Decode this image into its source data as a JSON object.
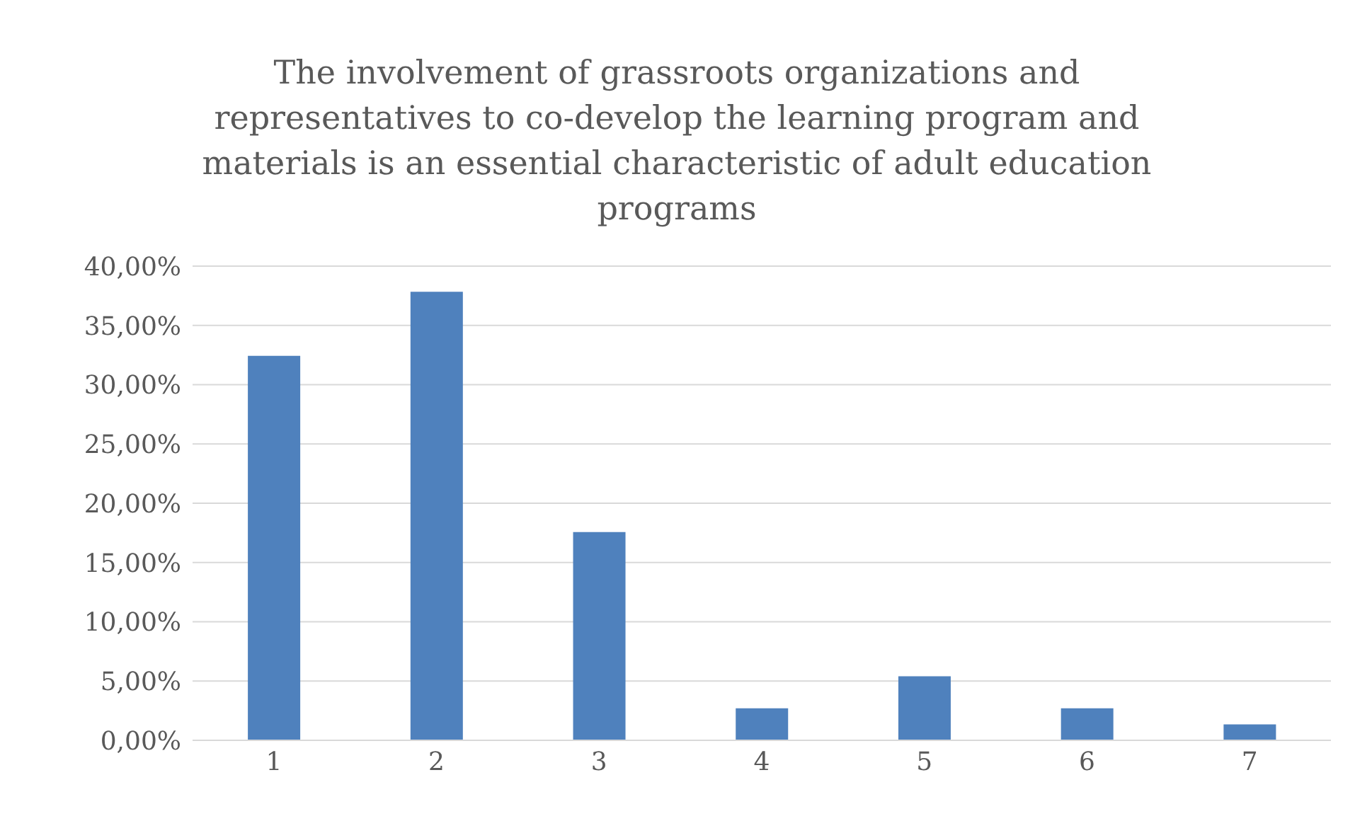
{
  "chart_data": {
    "type": "bar",
    "title": "The involvement of grassroots organizations and representatives to co-develop the learning program and materials is an essential characteristic of adult education programs",
    "categories": [
      "1",
      "2",
      "3",
      "4",
      "5",
      "6",
      "7"
    ],
    "values": [
      32.43,
      37.84,
      17.57,
      2.7,
      5.41,
      2.7,
      1.35
    ],
    "color": "#4f81bd",
    "ylim": [
      0,
      40
    ],
    "yticks": [
      {
        "value": 0,
        "label": "0,00%"
      },
      {
        "value": 5,
        "label": "5,00%"
      },
      {
        "value": 10,
        "label": "10,00%"
      },
      {
        "value": 15,
        "label": "15,00%"
      },
      {
        "value": 20,
        "label": "20,00%"
      },
      {
        "value": 25,
        "label": "25,00%"
      },
      {
        "value": 30,
        "label": "30,00%"
      },
      {
        "value": 35,
        "label": "35,00%"
      },
      {
        "value": 40,
        "label": "40,00%"
      }
    ],
    "grid": "y",
    "legend": false
  }
}
